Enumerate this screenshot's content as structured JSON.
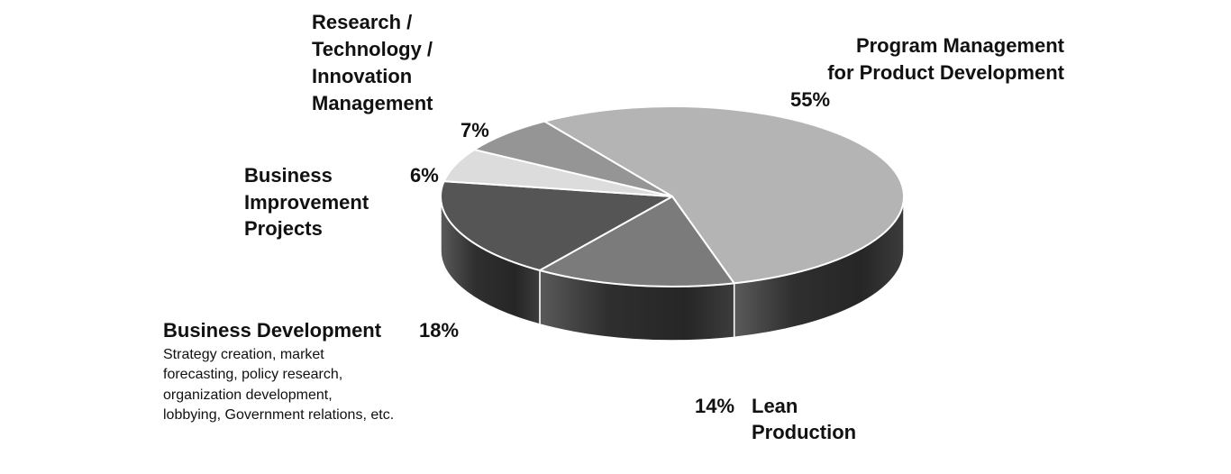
{
  "chart_data": {
    "type": "pie",
    "style": "3d",
    "categories": [
      "Program Management for Product Development",
      "Lean Production",
      "Business Development",
      "Business Improvement Projects",
      "Research / Technology / Innovation Management"
    ],
    "values": [
      55,
      14,
      18,
      6,
      7
    ],
    "value_labels": [
      "55%",
      "14%",
      "18%",
      "6%",
      "7%"
    ],
    "slice_colors": [
      "#b4b4b4",
      "#7b7b7b",
      "#555555",
      "#dcdcdc",
      "#959595"
    ],
    "annotations": {
      "research": {
        "lines": [
          "Research /",
          "Technology /",
          "Innovation",
          "Management"
        ],
        "value": "7%"
      },
      "program": {
        "lines": [
          "Program Management",
          "for Product Development"
        ],
        "value": "55%"
      },
      "improvement": {
        "lines": [
          "Business",
          "Improvement",
          "Projects"
        ],
        "value": "6%"
      },
      "business_dev": {
        "title": "Business Development",
        "value": "18%",
        "description": [
          "Strategy creation, market",
          "forecasting, policy research,",
          "organization development,",
          "lobbying, Government relations, etc."
        ]
      },
      "lean": {
        "lines": [
          "Lean",
          "Production"
        ],
        "value": "14%"
      }
    }
  }
}
